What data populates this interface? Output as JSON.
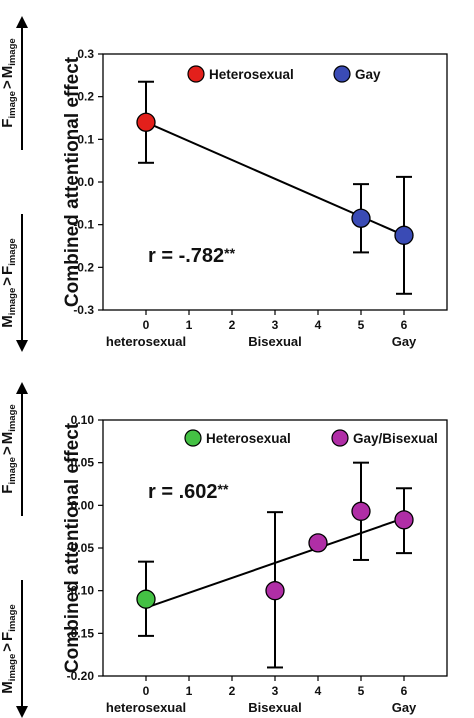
{
  "chart_data": [
    {
      "type": "scatter",
      "ylabel": "Combined attentional effect",
      "ylim": [
        -0.3,
        0.3
      ],
      "yticks": [
        "0.3",
        "0.2",
        "0.1",
        "0.0",
        "-0.1",
        "-0.2",
        "-0.3"
      ],
      "xlim": [
        -1,
        7
      ],
      "xticks": [
        "0",
        "1",
        "2",
        "3",
        "4",
        "5",
        "6"
      ],
      "category_labels": [
        {
          "x": 0,
          "label": "heterosexual"
        },
        {
          "x": 3,
          "label": "Bisexual"
        },
        {
          "x": 6,
          "label": "Gay"
        }
      ],
      "direction_labels": {
        "up": {
          "big1": "F",
          "sub1": "image",
          "rel": ">",
          "big2": "M",
          "sub2": "image"
        },
        "down": {
          "big1": "M",
          "sub1": "image",
          "rel": ">",
          "big2": "F",
          "sub2": "image"
        }
      },
      "legend": [
        {
          "name": "Heterosexual",
          "color": "#e3201b"
        },
        {
          "name": "Gay",
          "color": "#3a4bb5"
        }
      ],
      "legend_placement": "top-right",
      "correlation": {
        "text": "r = -.782",
        "stars": "**"
      },
      "points": [
        {
          "x": 0,
          "y": 0.14,
          "lo": 0.045,
          "hi": 0.235,
          "group": 0
        },
        {
          "x": 5,
          "y": -0.085,
          "lo": -0.165,
          "hi": -0.005,
          "group": 1
        },
        {
          "x": 6,
          "y": -0.125,
          "lo": -0.262,
          "hi": 0.012,
          "group": 1
        }
      ],
      "fit_line": {
        "x": [
          0,
          6
        ],
        "y": [
          0.14,
          -0.125
        ]
      },
      "grid": false
    },
    {
      "type": "scatter",
      "ylabel": "Combined attentional effect",
      "ylim": [
        -0.2,
        0.1
      ],
      "yticks": [
        "0.10",
        "0.05",
        "0.00",
        "-0.05",
        "-0.10",
        "-0.15",
        "-0.20"
      ],
      "xlim": [
        -1,
        7
      ],
      "xticks": [
        "0",
        "1",
        "2",
        "3",
        "4",
        "5",
        "6"
      ],
      "category_labels": [
        {
          "x": 0,
          "label": "heterosexual"
        },
        {
          "x": 3,
          "label": "Bisexual"
        },
        {
          "x": 6,
          "label": "Gay"
        }
      ],
      "direction_labels": {
        "up": {
          "big1": "F",
          "sub1": "image",
          "rel": ">",
          "big2": "M",
          "sub2": "image"
        },
        "down": {
          "big1": "M",
          "sub1": "image",
          "rel": ">",
          "big2": "F",
          "sub2": "image"
        }
      },
      "legend": [
        {
          "name": "Heterosexual",
          "color": "#44c144"
        },
        {
          "name": "Gay/Bisexual",
          "color": "#b02ea6"
        }
      ],
      "legend_placement": "top-right",
      "correlation": {
        "text": "r = .602",
        "stars": "**"
      },
      "points": [
        {
          "x": 0,
          "y": -0.11,
          "lo": -0.153,
          "hi": -0.066,
          "group": 0
        },
        {
          "x": 3,
          "y": -0.1,
          "lo": -0.19,
          "hi": -0.008,
          "group": 1
        },
        {
          "x": 4,
          "y": -0.044,
          "lo": -0.044,
          "hi": -0.044,
          "group": 1
        },
        {
          "x": 5,
          "y": -0.007,
          "lo": -0.064,
          "hi": 0.05,
          "group": 1
        },
        {
          "x": 6,
          "y": -0.017,
          "lo": -0.056,
          "hi": 0.02,
          "group": 1
        }
      ],
      "fit_line": {
        "x": [
          0,
          6
        ],
        "y": [
          -0.12,
          -0.015
        ]
      },
      "grid": false
    }
  ]
}
